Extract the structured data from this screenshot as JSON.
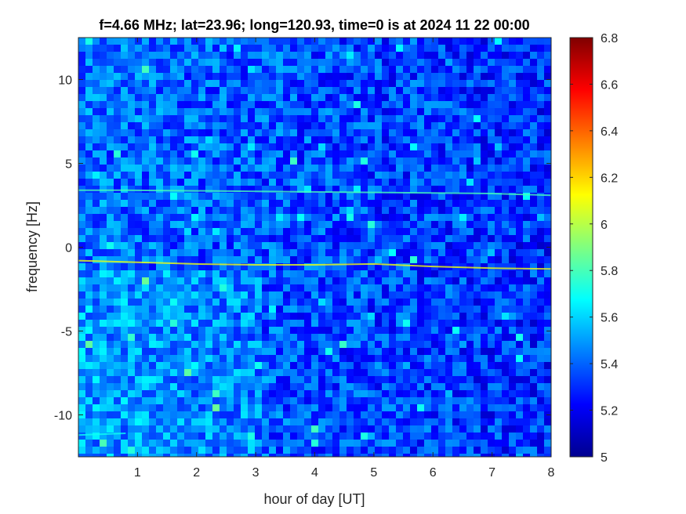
{
  "chart_data": {
    "type": "heatmap",
    "title": "f=4.66 MHz;  lat=23.96; long=120.93, time=0 is at 2024 11 22 00:00",
    "xlabel": "hour of day [UT]",
    "ylabel": "frequency [Hz]",
    "xlim": [
      0,
      8
    ],
    "ylim": [
      -12.5,
      12.5
    ],
    "x_ticks": [
      1,
      2,
      3,
      4,
      5,
      6,
      7,
      8
    ],
    "x_tick_labels": [
      "1",
      "2",
      "3",
      "4",
      "5",
      "6",
      "7",
      "8"
    ],
    "y_ticks": [
      -10,
      -5,
      0,
      5,
      10
    ],
    "y_tick_labels": [
      "-10",
      "-5",
      "0",
      "5",
      "10"
    ],
    "colorbar": {
      "range": [
        5,
        6.8
      ],
      "ticks": [
        5,
        5.2,
        5.4,
        5.6,
        5.8,
        6,
        6.2,
        6.4,
        6.6,
        6.8
      ],
      "tick_labels": [
        "5",
        "5.2",
        "5.4",
        "5.6",
        "5.8",
        "6",
        "6.2",
        "6.4",
        "6.6",
        "6.8"
      ],
      "colormap": "jet"
    },
    "background_level": 5.3,
    "traces": [
      {
        "points": [
          [
            0,
            -0.8
          ],
          [
            1,
            -0.9
          ],
          [
            2,
            -1.0
          ],
          [
            3,
            -1.05
          ],
          [
            4,
            -1.05
          ],
          [
            5,
            -1.0
          ],
          [
            6,
            -1.15
          ],
          [
            7,
            -1.25
          ],
          [
            8,
            -1.3
          ]
        ],
        "level": 6.1
      },
      {
        "points": [
          [
            0,
            3.4
          ],
          [
            0.8,
            3.4
          ],
          [
            7.0,
            3.2
          ],
          [
            8,
            3.1
          ]
        ],
        "level": 5.8
      },
      {
        "points": [
          [
            0,
            -11.2
          ],
          [
            0.8,
            -11.1
          ]
        ],
        "level": 5.7
      }
    ],
    "grid": false
  }
}
